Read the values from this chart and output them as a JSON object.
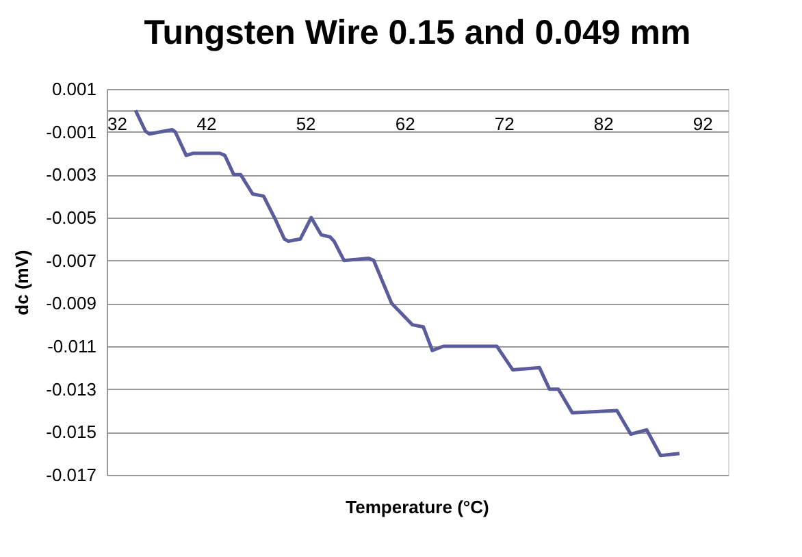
{
  "chart_data": {
    "type": "line",
    "title": "Tungsten Wire 0.15 and 0.049 mm",
    "xlabel": "Temperature (°C)",
    "ylabel": "dc (mV)",
    "x": [
      34.9,
      35.9,
      36.3,
      38.6,
      38.9,
      40.0,
      40.7,
      43.4,
      43.9,
      44.8,
      45.5,
      46.7,
      47.8,
      49.0,
      49.9,
      50.3,
      51.5,
      52.6,
      53.6,
      54.5,
      54.9,
      55.9,
      58.4,
      58.9,
      60.7,
      62.8,
      63.9,
      64.8,
      65.9,
      71.3,
      72.9,
      75.6,
      76.6,
      77.5,
      78.9,
      83.4,
      84.8,
      86.4,
      87.8,
      89.7
    ],
    "series": [
      {
        "color": "#5b5c9c",
        "values": [
          0.0,
          -0.00097,
          -0.0011,
          -0.0009,
          -0.001,
          -0.0021,
          -0.002,
          -0.002,
          -0.0021,
          -0.003,
          -0.003,
          -0.0039,
          -0.004,
          -0.0051,
          -0.006,
          -0.0061,
          -0.006,
          -0.005,
          -0.0058,
          -0.0059,
          -0.0061,
          -0.007,
          -0.0069,
          -0.007,
          -0.009,
          -0.01,
          -0.0101,
          -0.0112,
          -0.011,
          -0.011,
          -0.0121,
          -0.012,
          -0.013,
          -0.013,
          -0.0141,
          -0.014,
          -0.0151,
          -0.0149,
          -0.0161,
          -0.016
        ]
      }
    ],
    "xlim": [
      32,
      94.6
    ],
    "xticks": [
      32,
      42,
      52,
      62,
      72,
      82,
      92
    ],
    "ylim": [
      -0.017,
      0.001
    ],
    "yticks": [
      0.001,
      -0.001,
      -0.003,
      -0.005,
      -0.007,
      -0.009,
      -0.011,
      -0.013,
      -0.015,
      -0.017
    ],
    "grid": "y",
    "marker": "none",
    "line_style": "solid"
  }
}
